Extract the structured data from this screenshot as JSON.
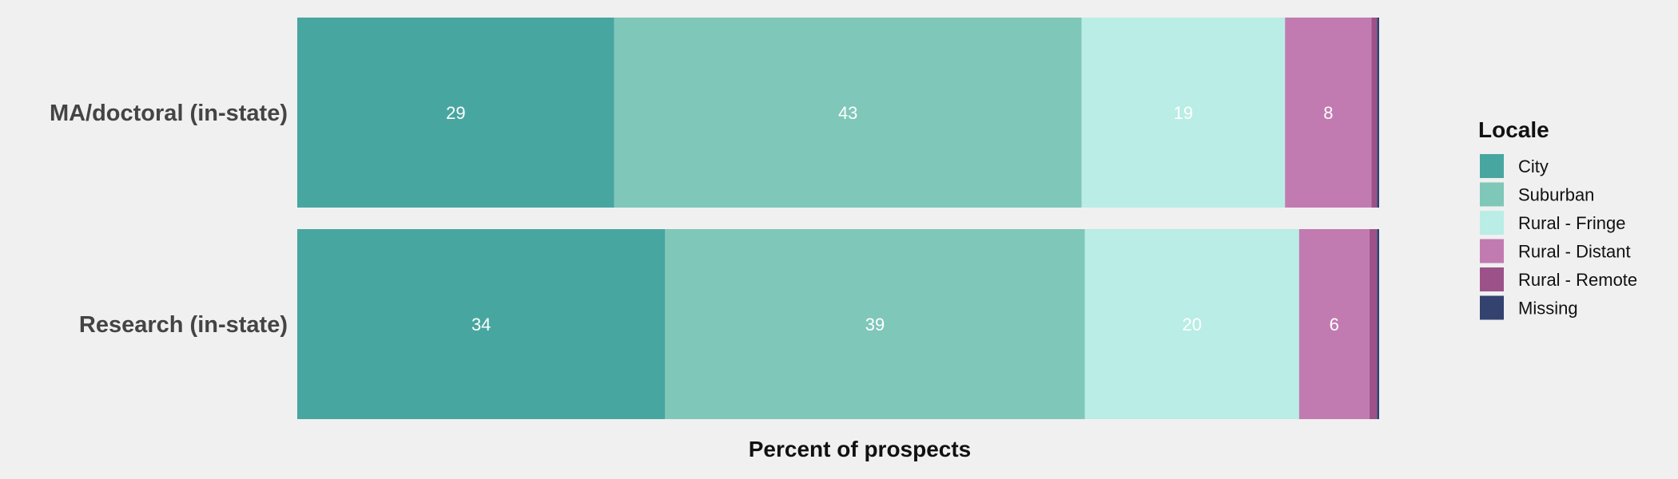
{
  "chart_data": {
    "type": "bar",
    "orientation": "horizontal",
    "stacked": true,
    "categories": [
      "MA/doctoral (in-state)",
      "Research (in-state)"
    ],
    "series": [
      {
        "name": "City",
        "color": "#48a6a0",
        "values": [
          29.3,
          34.0
        ],
        "labels": [
          "29",
          "34"
        ]
      },
      {
        "name": "Suburban",
        "color": "#7fc7b9",
        "values": [
          43.2,
          38.8
        ],
        "labels": [
          "43",
          "39"
        ]
      },
      {
        "name": "Rural - Fringe",
        "color": "#b9ede5",
        "values": [
          18.8,
          19.8
        ],
        "labels": [
          "19",
          "20"
        ]
      },
      {
        "name": "Rural - Distant",
        "color": "#c27bb1",
        "values": [
          8.0,
          6.5
        ],
        "labels": [
          "8",
          "6"
        ]
      },
      {
        "name": "Rural - Remote",
        "color": "#9c5289",
        "values": [
          0.5,
          0.7
        ],
        "labels": [
          "",
          ""
        ]
      },
      {
        "name": "Missing",
        "color": "#33426f",
        "values": [
          0.2,
          0.2
        ],
        "labels": [
          "",
          ""
        ]
      }
    ],
    "xlabel": "Percent of prospects",
    "ylabel": "",
    "xlim": [
      0,
      100
    ],
    "grid": false,
    "legend": {
      "title": "Locale",
      "position": "right"
    }
  }
}
